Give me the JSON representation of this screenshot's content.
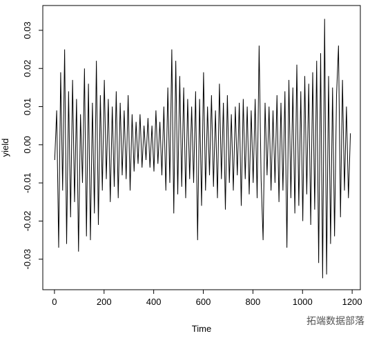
{
  "chart_data": {
    "type": "line",
    "x_label": "Time",
    "y_label": "yield",
    "watermark": "拓端数据部落",
    "x": [
      1,
      9,
      17,
      25,
      33,
      41,
      49,
      57,
      65,
      73,
      81,
      89,
      97,
      105,
      113,
      121,
      129,
      137,
      145,
      153,
      161,
      169,
      177,
      185,
      193,
      201,
      209,
      217,
      225,
      233,
      241,
      249,
      257,
      265,
      273,
      281,
      289,
      297,
      305,
      313,
      321,
      329,
      337,
      345,
      353,
      361,
      369,
      377,
      385,
      393,
      401,
      409,
      417,
      425,
      433,
      441,
      449,
      457,
      465,
      473,
      481,
      489,
      497,
      505,
      513,
      521,
      529,
      537,
      545,
      553,
      561,
      569,
      577,
      585,
      593,
      601,
      609,
      617,
      625,
      633,
      641,
      649,
      657,
      665,
      673,
      681,
      689,
      697,
      705,
      713,
      721,
      729,
      737,
      745,
      753,
      761,
      769,
      777,
      785,
      793,
      801,
      809,
      817,
      825,
      833,
      841,
      849,
      857,
      865,
      873,
      881,
      889,
      897,
      905,
      913,
      921,
      929,
      937,
      945,
      953,
      961,
      969,
      977,
      985,
      993,
      1001,
      1009,
      1017,
      1025,
      1033,
      1041,
      1049,
      1057,
      1065,
      1073,
      1081,
      1089,
      1097,
      1105,
      1113,
      1121,
      1129,
      1137,
      1145,
      1153,
      1161,
      1169,
      1177,
      1185,
      1193
    ],
    "values": [
      -0.004,
      0.009,
      -0.027,
      0.019,
      -0.012,
      0.025,
      -0.026,
      0.014,
      -0.019,
      0.017,
      -0.015,
      0.012,
      -0.028,
      0.008,
      -0.01,
      0.02,
      -0.024,
      0.016,
      -0.025,
      0.011,
      -0.018,
      0.022,
      -0.021,
      0.013,
      -0.012,
      0.017,
      -0.009,
      0.012,
      -0.015,
      0.01,
      -0.011,
      0.014,
      -0.014,
      0.011,
      -0.008,
      0.009,
      -0.009,
      0.013,
      -0.012,
      0.008,
      -0.007,
      0.006,
      -0.005,
      0.008,
      -0.006,
      0.005,
      -0.004,
      0.007,
      -0.006,
      0.005,
      -0.007,
      0.009,
      -0.005,
      0.006,
      -0.008,
      0.01,
      -0.012,
      0.015,
      -0.01,
      0.025,
      -0.018,
      0.022,
      -0.013,
      0.018,
      -0.011,
      0.015,
      -0.014,
      0.012,
      -0.009,
      0.01,
      -0.01,
      0.014,
      -0.025,
      0.012,
      -0.016,
      0.019,
      -0.012,
      0.01,
      -0.008,
      0.013,
      -0.011,
      0.009,
      -0.014,
      0.016,
      -0.009,
      0.011,
      -0.017,
      0.013,
      -0.01,
      0.008,
      -0.012,
      0.01,
      -0.008,
      0.011,
      -0.016,
      0.012,
      -0.009,
      0.01,
      -0.013,
      0.009,
      -0.01,
      0.012,
      -0.014,
      0.026,
      -0.009,
      -0.025,
      0.011,
      -0.008,
      0.01,
      -0.012,
      0.009,
      -0.01,
      0.013,
      -0.015,
      0.011,
      -0.012,
      0.014,
      -0.027,
      0.017,
      -0.014,
      0.015,
      -0.018,
      0.021,
      -0.016,
      0.014,
      -0.02,
      0.018,
      -0.013,
      0.016,
      -0.021,
      0.019,
      -0.017,
      0.022,
      -0.031,
      0.024,
      -0.035,
      0.033,
      -0.034,
      0.018,
      -0.026,
      0.015,
      -0.024,
      0.013,
      0.026,
      -0.019,
      0.017,
      -0.012,
      0.01,
      -0.014,
      0.003
    ],
    "color": "#000000",
    "xlim": [
      -47,
      1233
    ],
    "ylim": [
      -0.038,
      0.0365
    ],
    "xticks": [
      0,
      200,
      400,
      600,
      800,
      1000,
      1200
    ],
    "yticks": [
      -0.03,
      -0.02,
      -0.01,
      {
        "value": 0,
        "label": "0.00"
      },
      0.01,
      0.02,
      0.03
    ]
  }
}
